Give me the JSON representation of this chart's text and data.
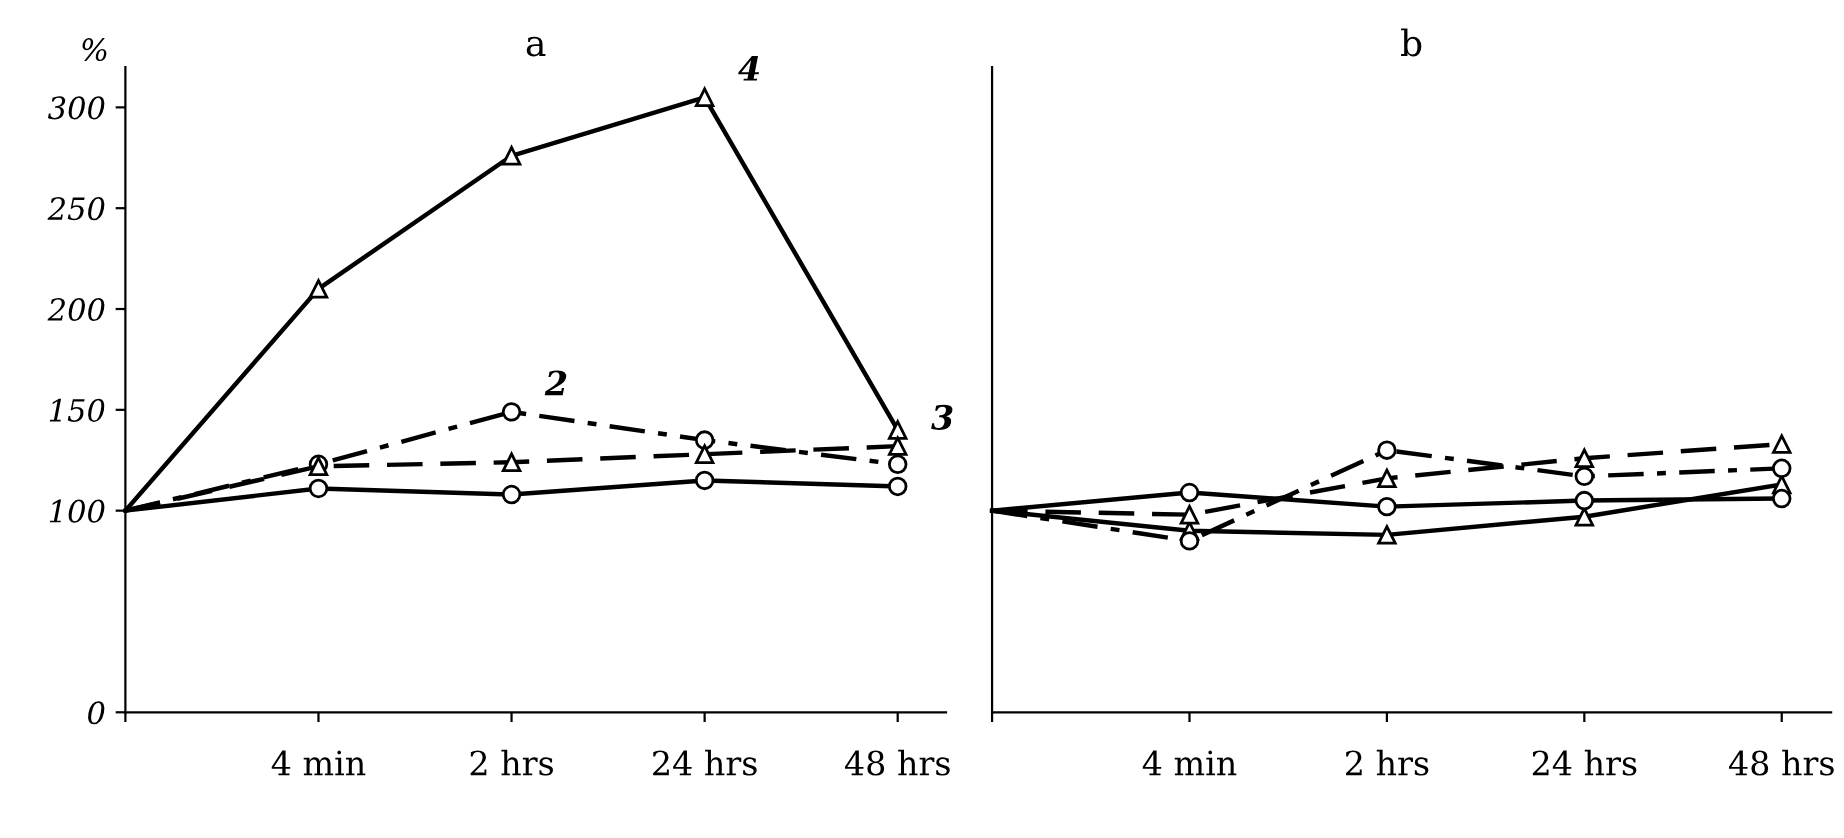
{
  "chart_data": [
    {
      "type": "line",
      "title": "a",
      "ylabel": "%",
      "categories": [
        null,
        "4 min",
        "2 hrs",
        "24 hrs",
        "48 hrs"
      ],
      "ylim": [
        0,
        320
      ],
      "yticks": [
        0,
        100,
        150,
        200,
        250,
        300
      ],
      "grid": false,
      "legend": false,
      "series": [
        {
          "name": "4",
          "color": "#000000",
          "marker": "triangle",
          "line_style": "solid",
          "values": [
            100,
            210,
            276,
            305,
            140
          ]
        },
        {
          "name": "2",
          "color": "#000000",
          "marker": "circle",
          "line_style": "dashdot",
          "values": [
            100,
            123,
            149,
            135,
            123
          ]
        },
        {
          "name": "3",
          "color": "#000000",
          "marker": "triangle",
          "line_style": "dashed",
          "values": [
            100,
            122,
            124,
            128,
            132
          ]
        },
        {
          "color": "#000000",
          "marker": "circle",
          "line_style": "solid",
          "values": [
            100,
            111,
            108,
            115,
            112
          ]
        }
      ]
    },
    {
      "type": "line",
      "title": "b",
      "categories": [
        null,
        "4 min",
        "2 hrs",
        "24 hrs",
        "48 hrs"
      ],
      "ylim": [
        0,
        320
      ],
      "tick_labels": "x",
      "grid": false,
      "legend": false,
      "series": [
        {
          "color": "#000000",
          "marker": "triangle",
          "line_style": "solid",
          "values": [
            100,
            90,
            88,
            97,
            113
          ]
        },
        {
          "color": "#000000",
          "marker": "circle",
          "line_style": "dashdot",
          "values": [
            100,
            85,
            130,
            117,
            121
          ]
        },
        {
          "color": "#000000",
          "marker": "triangle",
          "line_style": "dashed",
          "values": [
            100,
            98,
            116,
            126,
            133
          ]
        },
        {
          "color": "#000000",
          "marker": "circle",
          "line_style": "solid",
          "values": [
            100,
            109,
            102,
            105,
            106
          ]
        }
      ]
    }
  ]
}
